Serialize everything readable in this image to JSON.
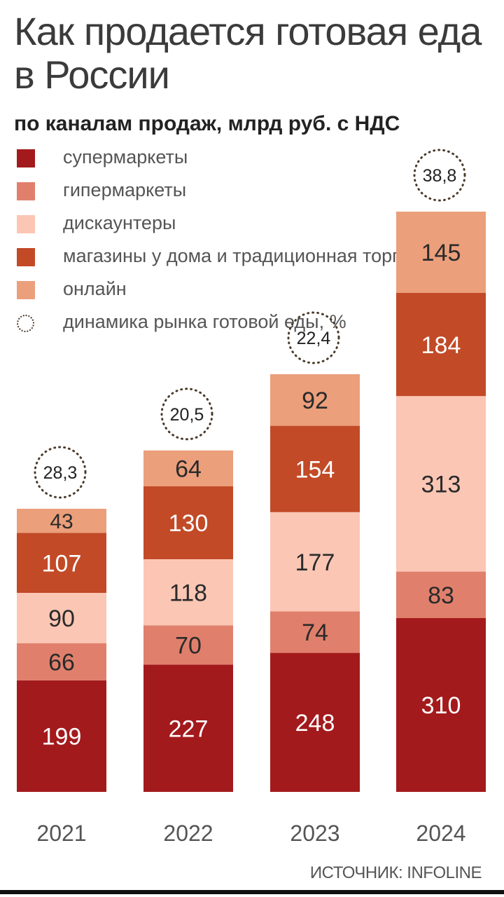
{
  "chart_data": {
    "type": "bar",
    "stacked": true,
    "title": "Как продается готовая еда в России",
    "subtitle": "по каналам продаж, млрд руб. с НДС",
    "categories": [
      "2021",
      "2022",
      "2023",
      "2024"
    ],
    "series": [
      {
        "name": "супермаркеты",
        "color": "#a31a1c",
        "values": [
          199,
          227,
          248,
          310
        ]
      },
      {
        "name": "гипермаркеты",
        "color": "#e0806c",
        "values": [
          66,
          70,
          74,
          83
        ]
      },
      {
        "name": "дискаунтеры",
        "color": "#fbc6b4",
        "values": [
          90,
          118,
          177,
          313
        ]
      },
      {
        "name": "магазины у дома и традиционная торговля",
        "color": "#c24a27",
        "values": [
          107,
          130,
          154,
          184
        ]
      },
      {
        "name": "онлайн",
        "color": "#eb9f7b",
        "values": [
          43,
          64,
          92,
          145
        ]
      }
    ],
    "growth": {
      "label": "динамика рынка готовой еды, %",
      "values": [
        "28,3",
        "20,5",
        "22,4",
        "38,8"
      ]
    },
    "legend_position": "top-left",
    "grid": false
  },
  "source": "ИСТОЧНИК: INFOLINE"
}
